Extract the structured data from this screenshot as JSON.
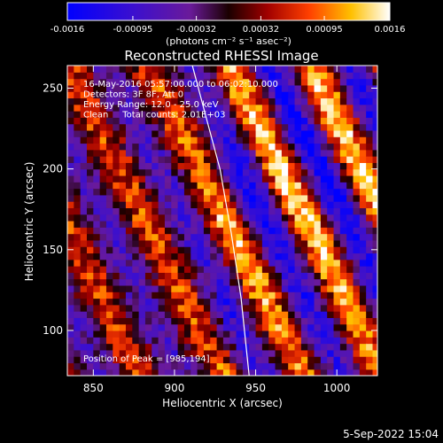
{
  "colorbar": {
    "ticks": [
      "-0.0016",
      "-0.00095",
      "-0.00032",
      "0.00032",
      "0.00095",
      "0.0016"
    ],
    "unit_label": "(photons cm⁻² s⁻¹ asec⁻²)",
    "min": -0.0016,
    "max": 0.0016
  },
  "chart_data": {
    "type": "heatmap",
    "title": "Reconstructed RHESSI Image",
    "xlabel": "Heliocentric X (arcsec)",
    "ylabel": "Heliocentric Y (arcsec)",
    "xlim": [
      834,
      1025
    ],
    "ylim": [
      72,
      264
    ],
    "x_ticks": [
      850,
      900,
      950,
      1000
    ],
    "y_ticks": [
      100,
      150,
      200,
      250
    ],
    "grid": false,
    "annotations": [
      "16-May-2016 05:57:00.000 to 06:02:10.000",
      "Detectors: 3F 8F, Att 0",
      "Energy Range: 12.0 - 25.0 keV",
      "Clean     Total counts: 2.01E+03"
    ],
    "peak_text": "Position of Peak = [985,194]",
    "peak": [
      985,
      194
    ],
    "limb_curve": {
      "x": [
        911,
        920,
        928,
        935,
        941,
        946
      ],
      "y": [
        264,
        230,
        200,
        160,
        120,
        72
      ]
    },
    "pattern": {
      "description": "diagonal striped fringe pattern",
      "pixel_arcsec": 4
    }
  },
  "footer": {
    "timestamp": "5-Sep-2022 15:04"
  }
}
